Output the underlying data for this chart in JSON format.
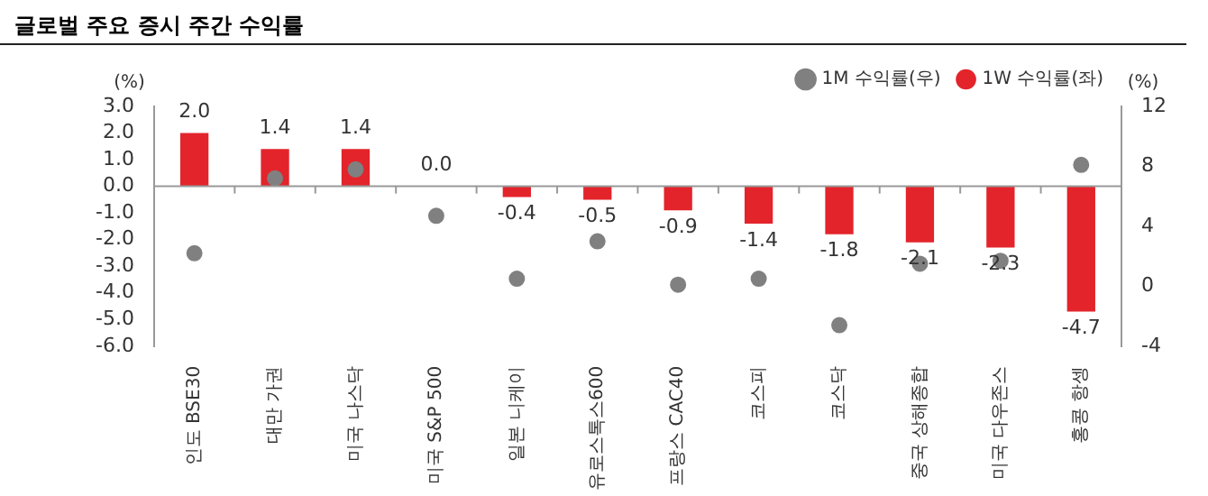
{
  "chart_data": {
    "type": "bar",
    "title": "글로벌 주요 증시 주간 수익률",
    "ylabel": "(%)",
    "y2label": "(%)",
    "categories": [
      "인도 BSE30",
      "대만 가권",
      "미국 나스닥",
      "미국 S&P 500",
      "일본 니케이",
      "유로스톡스600",
      "프랑스 CAC40",
      "코스피",
      "코스닥",
      "중국 상해종합",
      "미국 다우존스",
      "홍콩 항셍"
    ],
    "series": [
      {
        "name": "1W 수익률(좌)",
        "color": "#e3242b",
        "values": [
          2.0,
          1.4,
          1.4,
          0.0,
          -0.4,
          -0.5,
          -0.9,
          -1.4,
          -1.8,
          -2.1,
          -2.3,
          -4.7
        ],
        "value_labels": [
          "2.0",
          "1.4",
          "1.4",
          "0.0",
          "-0.4",
          "-0.5",
          "-0.9",
          "-1.4",
          "-1.8",
          "-2.1",
          "-2.3",
          "-4.7"
        ]
      },
      {
        "name": "1M 수익률(우)",
        "type": "scatter",
        "axis": "y2",
        "color": "#808080",
        "marker": "circle",
        "values": [
          2.2,
          7.2,
          7.8,
          4.7,
          0.5,
          3.0,
          0.1,
          0.5,
          -2.6,
          1.5,
          1.7,
          8.1
        ]
      }
    ],
    "ylim": [
      -6,
      3
    ],
    "yticks": [
      {
        "value": -6,
        "label": "-6.0"
      },
      {
        "value": -5,
        "label": "-5.0"
      },
      {
        "value": -4,
        "label": "-4.0"
      },
      {
        "value": -3,
        "label": "-3.0"
      },
      {
        "value": -2,
        "label": "-2.0"
      },
      {
        "value": -1,
        "label": "-1.0"
      },
      {
        "value": 0,
        "label": "0.0"
      },
      {
        "value": 1,
        "label": "1.0"
      },
      {
        "value": 2,
        "label": "2.0"
      },
      {
        "value": 3,
        "label": "3.0"
      }
    ],
    "y2lim": [
      -4,
      12
    ],
    "y2ticks": [
      -4,
      0,
      4,
      8,
      12
    ],
    "ref_lines": [
      {
        "axis": "y",
        "value": 0,
        "color": "#999999"
      }
    ],
    "grid": false,
    "legend": "top right"
  }
}
